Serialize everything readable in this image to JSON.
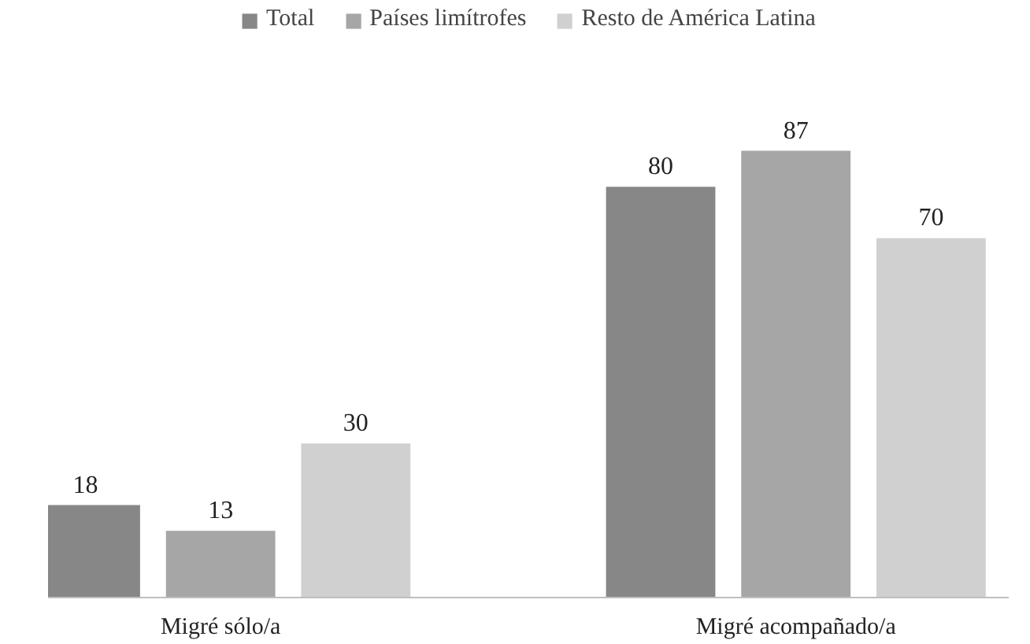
{
  "chart_data": {
    "type": "bar",
    "categories": [
      "Migré sólo/a",
      "Migré acompañado/a"
    ],
    "series": [
      {
        "name": "Total",
        "color": "#878787",
        "values": [
          18,
          80
        ]
      },
      {
        "name": "Países limítrofes",
        "color": "#a6a6a6",
        "values": [
          13,
          87
        ]
      },
      {
        "name": "Resto de América Latina",
        "color": "#d0d0d0",
        "values": [
          30,
          70
        ]
      }
    ],
    "ylim": [
      0,
      115
    ],
    "data_labels": true,
    "grid": false,
    "legend": "top"
  }
}
